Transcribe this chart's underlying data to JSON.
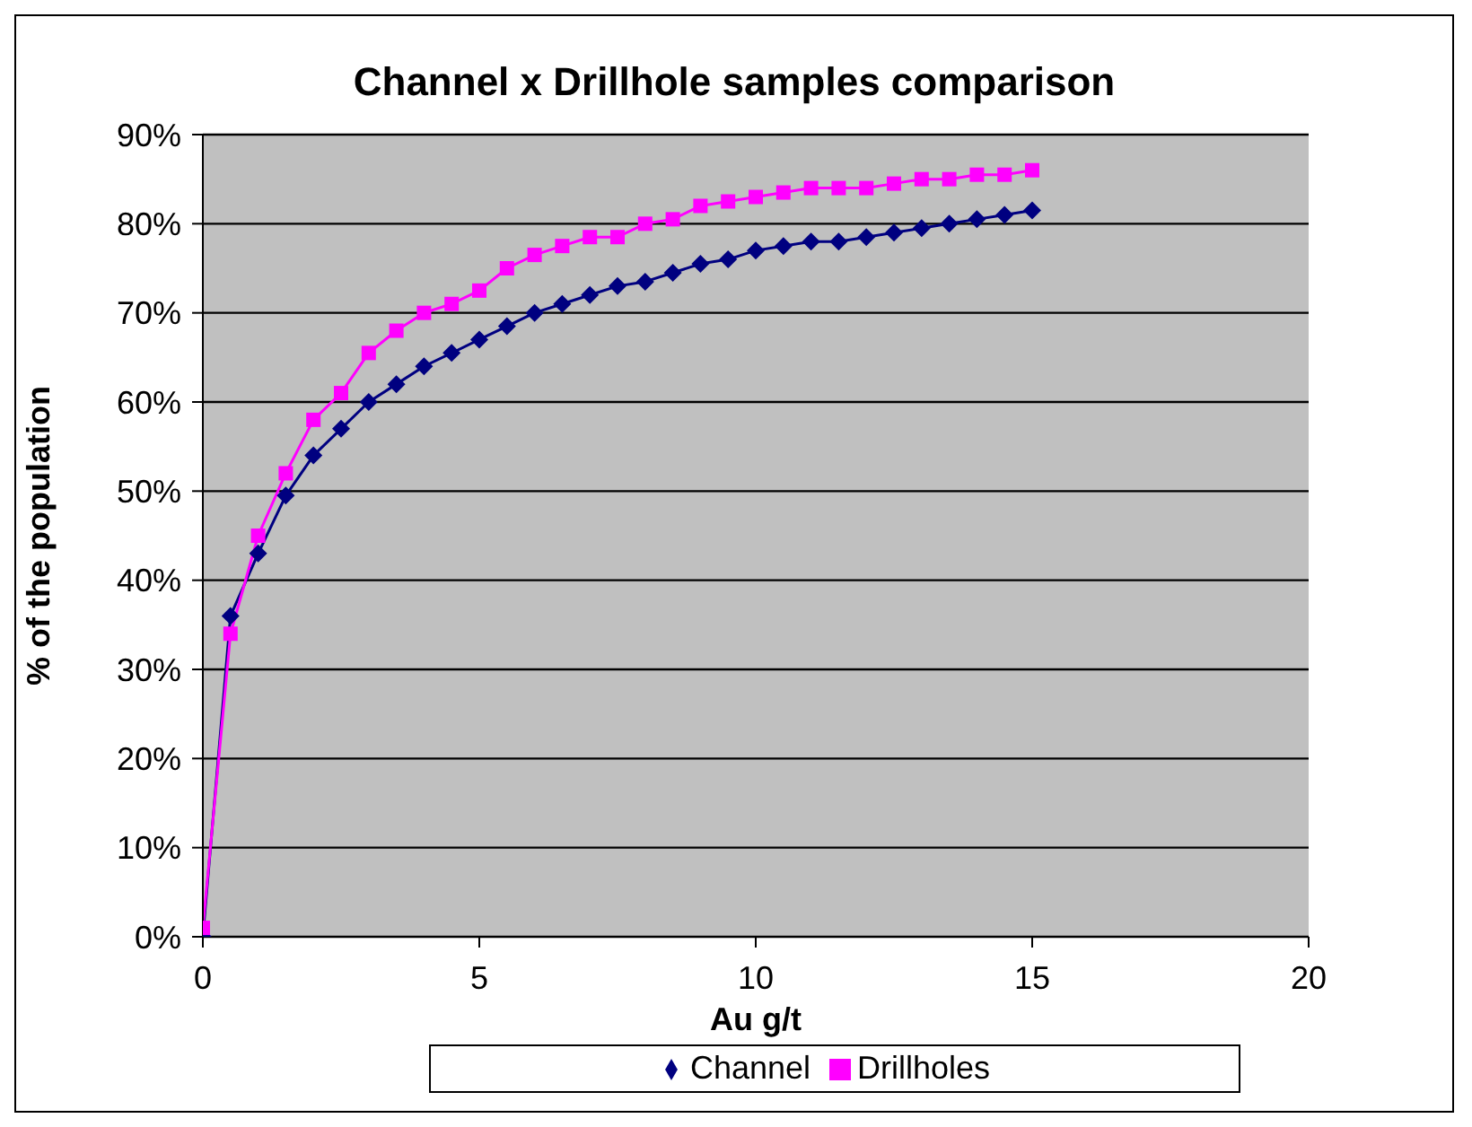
{
  "chart_data": {
    "type": "line",
    "title": "Channel x Drillhole samples comparison",
    "xlabel": "Au g/t",
    "ylabel": "% of the population",
    "x": [
      0,
      0.5,
      1,
      1.5,
      2,
      2.5,
      3,
      3.5,
      4,
      4.5,
      5,
      5.5,
      6,
      6.5,
      7,
      7.5,
      8,
      8.5,
      9,
      9.5,
      10,
      10.5,
      11,
      11.5,
      12,
      12.5,
      13,
      13.5,
      14,
      14.5,
      15
    ],
    "series": [
      {
        "name": "Channel",
        "color": "#000080",
        "marker": "diamond",
        "values": [
          0,
          36,
          43,
          49.5,
          54,
          57,
          60,
          62,
          64,
          65.5,
          67,
          68.5,
          70,
          71,
          72,
          73,
          73.5,
          74.5,
          75.5,
          76,
          77,
          77.5,
          78,
          78,
          78.5,
          79,
          79.5,
          80,
          80.5,
          81,
          81.5
        ]
      },
      {
        "name": "Drillholes",
        "color": "#ff00ff",
        "marker": "square",
        "values": [
          1,
          34,
          45,
          52,
          58,
          61,
          65.5,
          68,
          70,
          71,
          72.5,
          75,
          76.5,
          77.5,
          78.5,
          78.5,
          80,
          80.5,
          82,
          82.5,
          83,
          83.5,
          84,
          84,
          84,
          84.5,
          85,
          85,
          85.5,
          85.5,
          86
        ]
      }
    ],
    "xlim": [
      0,
      20
    ],
    "xticks": [
      0,
      5,
      10,
      15,
      20
    ],
    "ylim": [
      0,
      90
    ],
    "yticks": [
      {
        "value": 0,
        "label": "0%"
      },
      {
        "value": 10,
        "label": "10%"
      },
      {
        "value": 20,
        "label": "20%"
      },
      {
        "value": 30,
        "label": "30%"
      },
      {
        "value": 40,
        "label": "40%"
      },
      {
        "value": 50,
        "label": "50%"
      },
      {
        "value": 60,
        "label": "60%"
      },
      {
        "value": 70,
        "label": "70%"
      },
      {
        "value": 80,
        "label": "80%"
      },
      {
        "value": 90,
        "label": "90%"
      }
    ],
    "grid": "y",
    "legend": "bottom"
  }
}
